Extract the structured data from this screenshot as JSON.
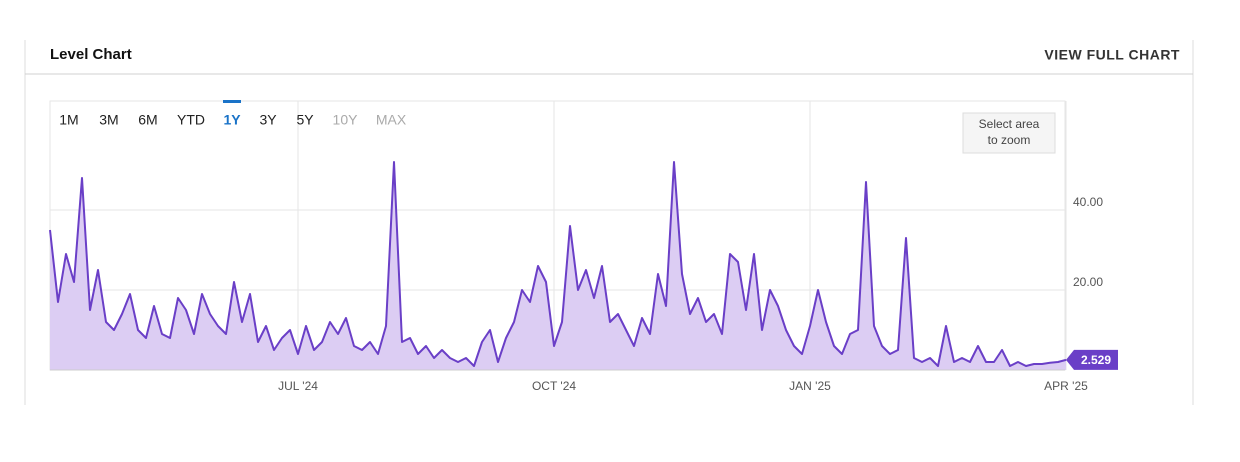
{
  "chart_data": {
    "type": "line",
    "title": "Level Chart",
    "link": "VIEW FULL CHART",
    "range_buttons": [
      {
        "label": "1M"
      },
      {
        "label": "3M"
      },
      {
        "label": "6M"
      },
      {
        "label": "YTD"
      },
      {
        "label": "1Y",
        "active": true
      },
      {
        "label": "3Y"
      },
      {
        "label": "5Y"
      },
      {
        "label": "10Y",
        "disabled": true
      },
      {
        "label": "MAX",
        "disabled": true
      }
    ],
    "zoom_hint": [
      "Select area",
      "to zoom"
    ],
    "color": "#6a3fc7",
    "fill_color": "#dccdf3",
    "grid": true,
    "categories": [
      null,
      null,
      null,
      null,
      null,
      null,
      null,
      null,
      null,
      null,
      null,
      null,
      null,
      null,
      null,
      null,
      null,
      null,
      null,
      null,
      null,
      null,
      null,
      null,
      null,
      null,
      null,
      null,
      null,
      null,
      null,
      "JUL '24",
      null,
      null,
      null,
      null,
      null,
      null,
      null,
      null,
      null,
      null,
      null,
      null,
      null,
      null,
      null,
      null,
      null,
      null,
      null,
      null,
      null,
      null,
      null,
      null,
      null,
      null,
      null,
      null,
      null,
      null,
      null,
      "OCT '24",
      null,
      null,
      null,
      null,
      null,
      null,
      null,
      null,
      null,
      null,
      null,
      null,
      null,
      null,
      null,
      null,
      null,
      null,
      null,
      null,
      null,
      null,
      null,
      null,
      null,
      null,
      null,
      null,
      null,
      null,
      null,
      "JAN '25",
      null,
      null,
      null,
      null,
      null,
      null,
      null,
      null,
      null,
      null,
      null,
      null,
      null,
      null,
      null,
      null,
      null,
      null,
      null,
      null,
      null,
      null,
      null,
      null,
      null,
      null,
      null,
      null,
      null,
      null,
      null,
      "APR '25"
    ],
    "values": [
      35,
      17,
      29,
      22,
      48,
      15,
      25,
      12,
      10,
      14,
      19,
      10,
      8,
      16,
      9,
      8,
      18,
      15,
      9,
      19,
      14,
      11,
      9,
      22,
      12,
      19,
      7,
      11,
      5,
      8,
      10,
      4,
      11,
      5,
      7,
      12,
      9,
      13,
      6,
      5,
      7,
      4,
      11,
      52,
      7,
      8,
      4,
      6,
      3,
      5,
      3,
      2,
      3,
      1,
      7,
      10,
      2,
      8,
      12,
      20,
      17,
      26,
      22,
      6,
      12,
      36,
      20,
      25,
      18,
      26,
      12,
      14,
      10,
      6,
      13,
      9,
      24,
      16,
      52,
      24,
      14,
      18,
      12,
      14,
      9,
      29,
      27,
      15,
      29,
      10,
      20,
      16,
      10,
      6,
      4,
      11,
      20,
      12,
      6,
      4,
      9,
      10,
      47,
      11,
      6,
      4,
      5,
      33,
      3,
      2,
      3,
      1,
      11,
      2,
      3,
      2,
      6,
      2,
      2,
      5,
      1,
      2,
      1,
      1.5,
      1.5,
      1.8,
      2,
      2.529
    ],
    "ylim": [
      0,
      67
    ],
    "yticks": [
      {
        "value": 20,
        "label": "20.00"
      },
      {
        "value": 40,
        "label": "40.00"
      }
    ]
  }
}
